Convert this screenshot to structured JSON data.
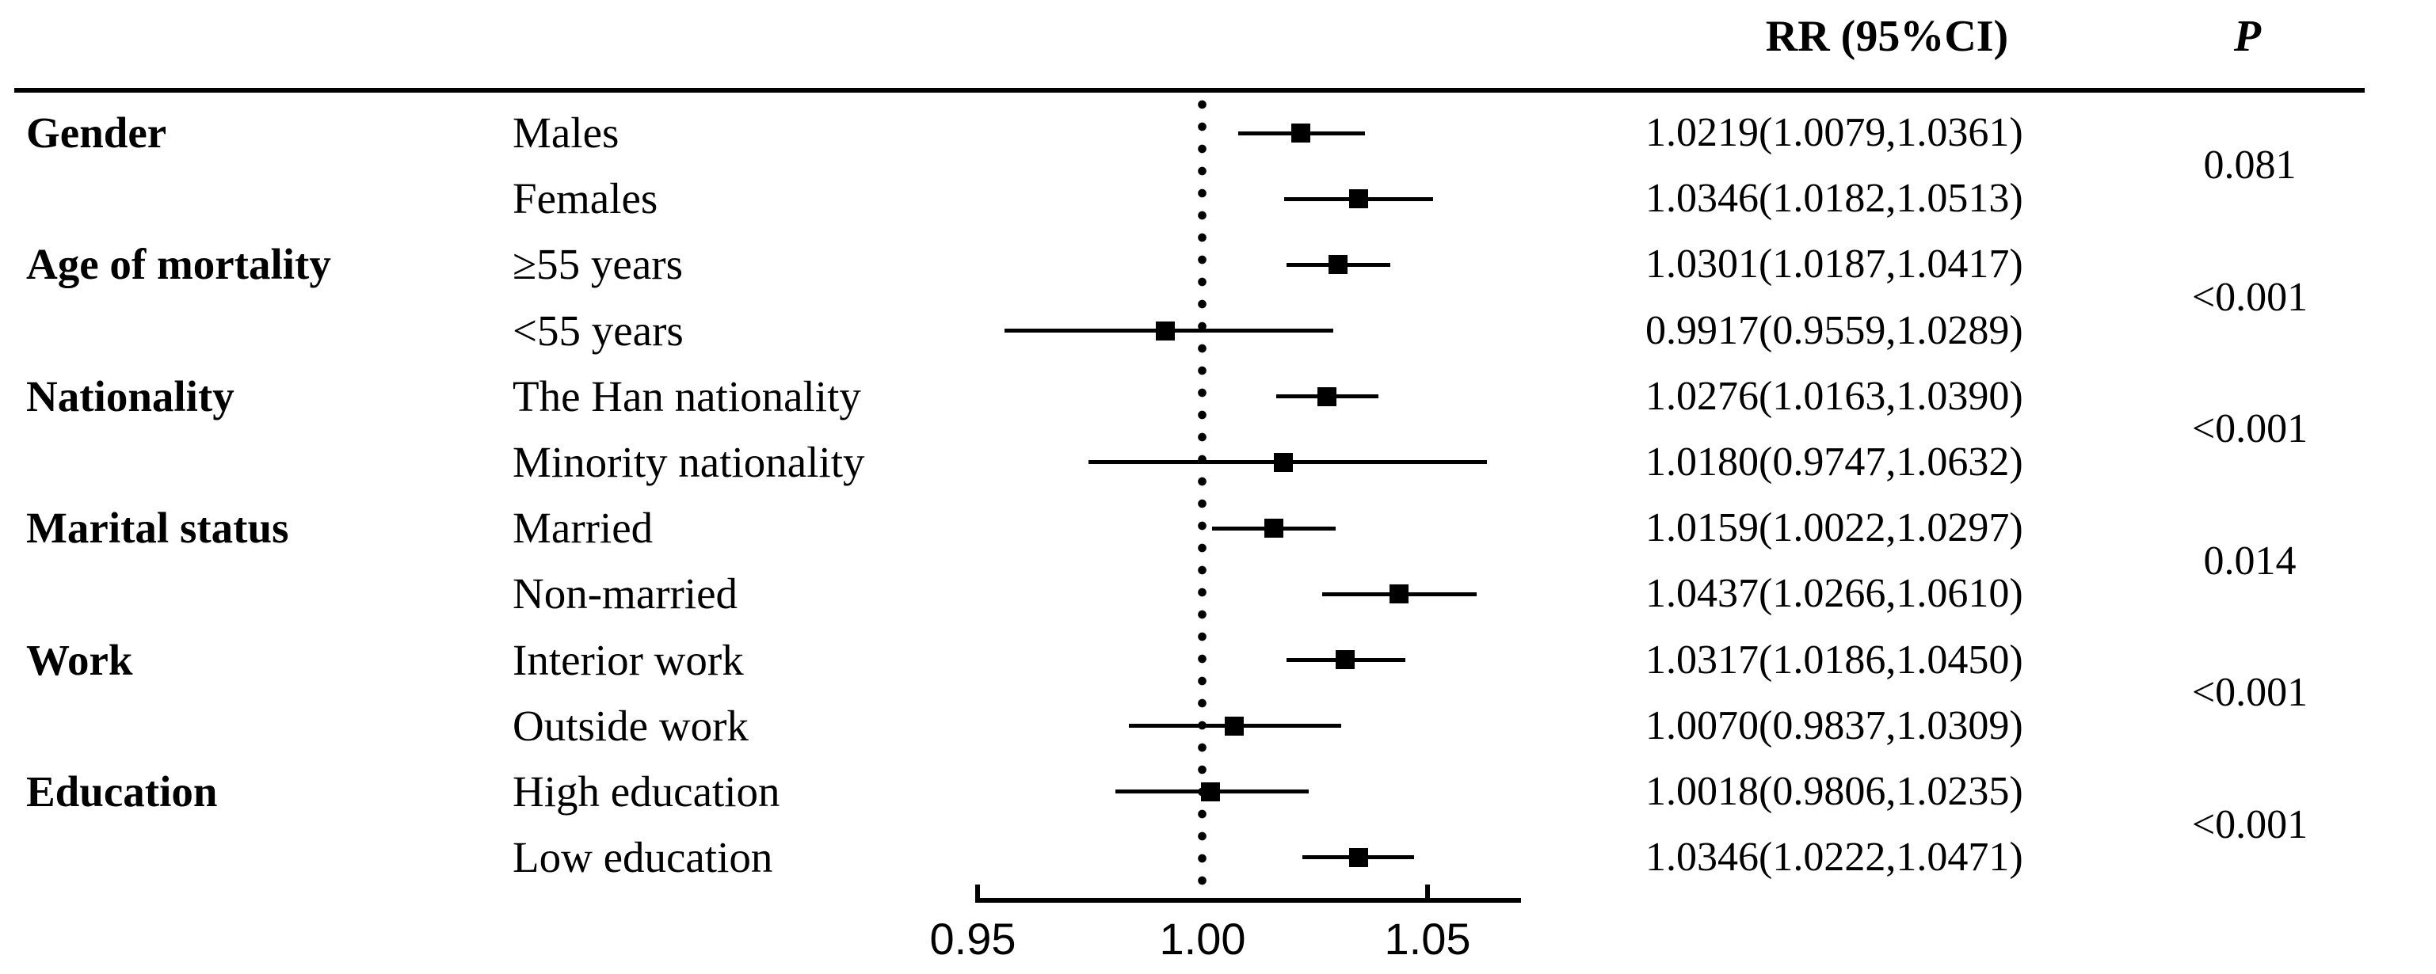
{
  "header": {
    "rr_col": "RR (95%CI)",
    "p_col": "P"
  },
  "chart_data": {
    "type": "forest",
    "title": "",
    "xlabel": "",
    "axis": {
      "min": 0.95,
      "max": 1.071,
      "reference_line": 1.0,
      "tick_values": [
        0.95,
        1.0,
        1.05
      ],
      "tick_labels": [
        "0.95",
        "1.00",
        "1.05"
      ]
    },
    "categories": [
      {
        "label": "Gender",
        "p": "0.081"
      },
      {
        "label": "Age of mortality",
        "p": "<0.001"
      },
      {
        "label": "Nationality",
        "p": "<0.001"
      },
      {
        "label": "Marital status",
        "p": "0.014"
      },
      {
        "label": "Work",
        "p": "<0.001"
      },
      {
        "label": "Education",
        "p": "<0.001"
      }
    ],
    "rows": [
      {
        "subgroup": "Males",
        "rr": 1.0219,
        "lo": 1.0079,
        "hi": 1.0361,
        "text": "1.0219(1.0079,1.0361)"
      },
      {
        "subgroup": "Females",
        "rr": 1.0346,
        "lo": 1.0182,
        "hi": 1.0513,
        "text": "1.0346(1.0182,1.0513)"
      },
      {
        "subgroup": "≥55 years",
        "rr": 1.0301,
        "lo": 1.0187,
        "hi": 1.0417,
        "text": "1.0301(1.0187,1.0417)"
      },
      {
        "subgroup": "<55 years",
        "rr": 0.9917,
        "lo": 0.9559,
        "hi": 1.0289,
        "text": "0.9917(0.9559,1.0289)"
      },
      {
        "subgroup": "The Han nationality",
        "rr": 1.0276,
        "lo": 1.0163,
        "hi": 1.039,
        "text": "1.0276(1.0163,1.0390)"
      },
      {
        "subgroup": "Minority nationality",
        "rr": 1.018,
        "lo": 0.9747,
        "hi": 1.0632,
        "text": "1.0180(0.9747,1.0632)"
      },
      {
        "subgroup": "Married",
        "rr": 1.0159,
        "lo": 1.0022,
        "hi": 1.0297,
        "text": "1.0159(1.0022,1.0297)"
      },
      {
        "subgroup": "Non-married",
        "rr": 1.0437,
        "lo": 1.0266,
        "hi": 1.061,
        "text": "1.0437(1.0266,1.0610)"
      },
      {
        "subgroup": "Interior work",
        "rr": 1.0317,
        "lo": 1.0186,
        "hi": 1.045,
        "text": "1.0317(1.0186,1.0450)"
      },
      {
        "subgroup": "Outside work",
        "rr": 1.007,
        "lo": 0.9837,
        "hi": 1.0309,
        "text": "1.0070(0.9837,1.0309)"
      },
      {
        "subgroup": "High education",
        "rr": 1.0018,
        "lo": 0.9806,
        "hi": 1.0235,
        "text": "1.0018(0.9806,1.0235)"
      },
      {
        "subgroup": "Low education",
        "rr": 1.0346,
        "lo": 1.0222,
        "hi": 1.0471,
        "text": "1.0346(1.0222,1.0471)"
      }
    ],
    "colors": {
      "ink": "#000000",
      "background": "#ffffff"
    },
    "legend": "none",
    "grid": "off"
  }
}
